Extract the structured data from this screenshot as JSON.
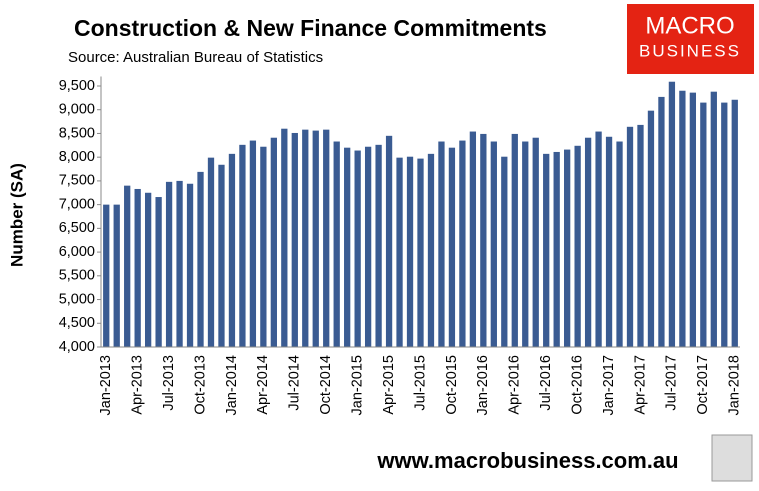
{
  "chart_data": {
    "type": "bar",
    "title": "Construction & New Finance Commitments",
    "subtitle": "Source: Australian Bureau of Statistics",
    "y_label": "Number (SA)",
    "categories": [
      "Jan-2013",
      null,
      null,
      "Apr-2013",
      null,
      null,
      "Jul-2013",
      null,
      null,
      "Oct-2013",
      null,
      null,
      "Jan-2014",
      null,
      null,
      "Apr-2014",
      null,
      null,
      "Jul-2014",
      null,
      null,
      "Oct-2014",
      null,
      null,
      "Jan-2015",
      null,
      null,
      "Apr-2015",
      null,
      null,
      "Jul-2015",
      null,
      null,
      "Oct-2015",
      null,
      null,
      "Jan-2016",
      null,
      null,
      "Apr-2016",
      null,
      null,
      "Jul-2016",
      null,
      null,
      "Oct-2016",
      null,
      null,
      "Jan-2017",
      null,
      null,
      "Apr-2017",
      null,
      null,
      "Jul-2017",
      null,
      null,
      "Oct-2017",
      null,
      null,
      "Jan-2018"
    ],
    "values": [
      7000,
      7000,
      7400,
      7330,
      7250,
      7160,
      7480,
      7500,
      7440,
      7690,
      7990,
      7840,
      8070,
      8260,
      8350,
      8220,
      8410,
      8600,
      8510,
      8580,
      8560,
      8580,
      8330,
      8200,
      8140,
      8220,
      8260,
      8450,
      7990,
      8010,
      7970,
      8070,
      8330,
      8200,
      8350,
      8540,
      8490,
      8330,
      8010,
      8490,
      8330,
      8410,
      8070,
      8110,
      8160,
      8240,
      8410,
      8540,
      8430,
      8330,
      8640,
      8680,
      8980,
      9270,
      9590,
      9400,
      9360,
      9150,
      9380,
      9150,
      9210
    ],
    "color": "#3a5b92",
    "ylim": [
      4000,
      9700
    ],
    "yticks": [
      {
        "value": 4000,
        "label": "4,000"
      },
      {
        "value": 4500,
        "label": "4,500"
      },
      {
        "value": 5000,
        "label": "5,000"
      },
      {
        "value": 5500,
        "label": "5,500"
      },
      {
        "value": 6000,
        "label": "6,000"
      },
      {
        "value": 6500,
        "label": "6,500"
      },
      {
        "value": 7000,
        "label": "7,000"
      },
      {
        "value": 7500,
        "label": "7,500"
      },
      {
        "value": 8000,
        "label": "8,000"
      },
      {
        "value": 8500,
        "label": "8,500"
      },
      {
        "value": 9000,
        "label": "9,000"
      },
      {
        "value": 9500,
        "label": "9,500"
      }
    ],
    "grid": false
  },
  "logo": {
    "line1": "MACRO",
    "line2": "BUSINESS"
  },
  "footer": "www.macrobusiness.com.au"
}
